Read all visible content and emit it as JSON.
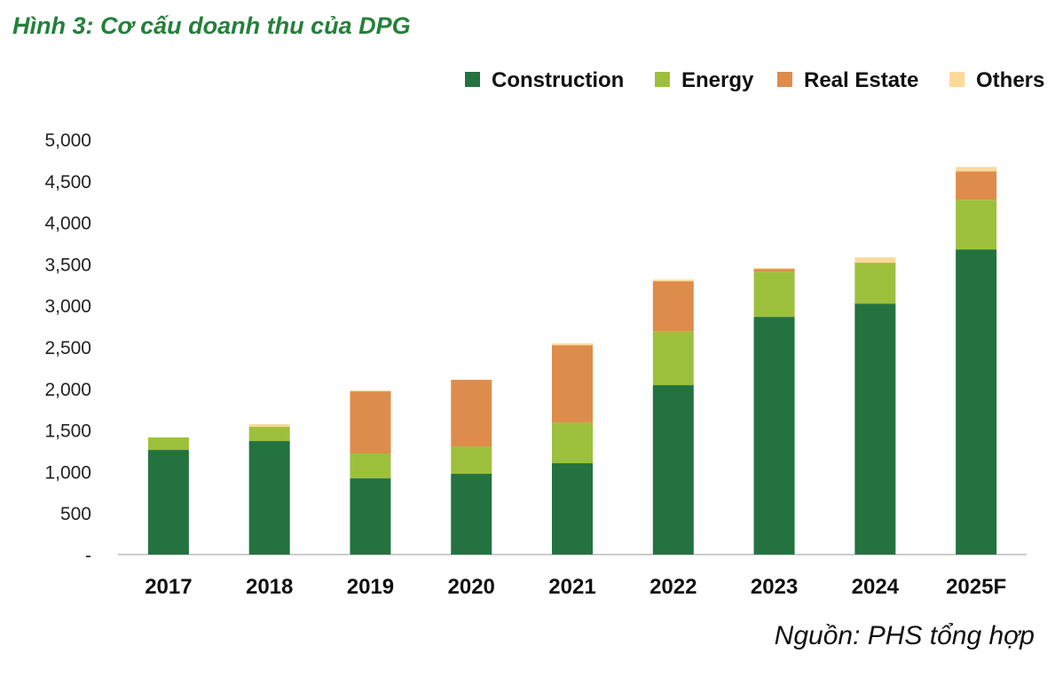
{
  "chart_data": {
    "type": "bar",
    "stacked": true,
    "title": "Hình 3: Cơ cấu doanh thu của DPG",
    "source": "Nguồn: PHS tổng hợp",
    "xlabel": "",
    "ylabel": "",
    "ylim": [
      0,
      5000
    ],
    "yticks": [
      0,
      500,
      1000,
      1500,
      2000,
      2500,
      3000,
      3500,
      4000,
      4500,
      5000
    ],
    "ytick_labels": [
      "-",
      "500",
      "1,000",
      "1,500",
      "2,000",
      "2,500",
      "3,000",
      "3,500",
      "4,000",
      "4,500",
      "5,000"
    ],
    "grid": false,
    "legend_position": "top-right",
    "categories": [
      "2017",
      "2018",
      "2019",
      "2020",
      "2021",
      "2022",
      "2023",
      "2024",
      "2025F"
    ],
    "series": [
      {
        "name": "Construction",
        "color": "#237240",
        "values": [
          1260,
          1367,
          918,
          972,
          1100,
          2040,
          2862,
          3022,
          3674
        ]
      },
      {
        "name": "Energy",
        "color": "#9dc03c",
        "values": [
          150,
          171,
          300,
          331,
          491,
          651,
          545,
          492,
          598
        ]
      },
      {
        "name": "Real Estate",
        "color": "#de8c4c",
        "values": [
          0,
          0,
          747,
          801,
          929,
          599,
          32,
          0,
          342
        ]
      },
      {
        "name": "Others",
        "color": "#fdd99b",
        "values": [
          0,
          32,
          11,
          0,
          22,
          21,
          11,
          64,
          53
        ]
      }
    ]
  }
}
